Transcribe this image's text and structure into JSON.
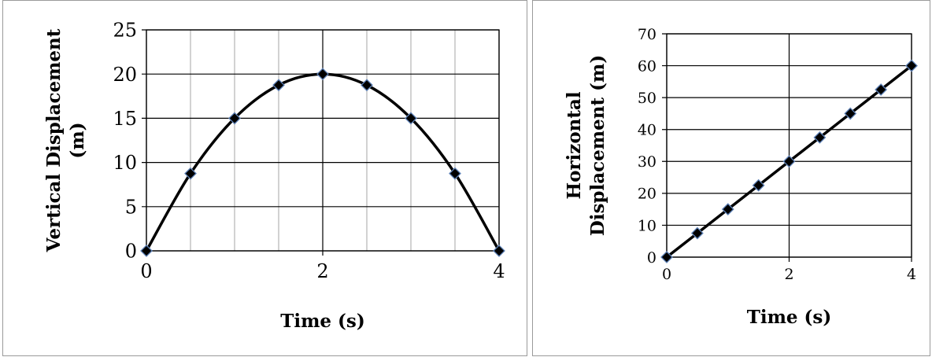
{
  "chart_data": [
    {
      "type": "line",
      "markers": "diamond",
      "xlabel": "Time (s)",
      "ylabel_lines": [
        "Vertical Displacement",
        "(m)"
      ],
      "xlim": [
        0,
        4
      ],
      "ylim": [
        0,
        25
      ],
      "xticks": [
        0,
        2,
        4
      ],
      "yticks": [
        0,
        5,
        10,
        15,
        20,
        25
      ],
      "minor_x_grid_step": 0.5,
      "grid": true,
      "series": [
        {
          "x": [
            0,
            0.5,
            1,
            1.5,
            2,
            2.5,
            3,
            3.5,
            4
          ],
          "y": [
            0,
            8.75,
            15,
            18.75,
            20,
            18.75,
            15,
            8.75,
            0
          ]
        }
      ],
      "colors": {
        "line": "#000000",
        "marker_fill": "#000000",
        "marker_edge": "#5b7fb5",
        "major_grid": "#000000",
        "minor_grid": "#bfbfbf"
      }
    },
    {
      "type": "line",
      "markers": "diamond",
      "xlabel": "Time (s)",
      "ylabel_lines": [
        "Horizontal",
        "Displacement (m)"
      ],
      "xlim": [
        0,
        4
      ],
      "ylim": [
        0,
        70
      ],
      "xticks": [
        0,
        2,
        4
      ],
      "yticks": [
        0,
        10,
        20,
        30,
        40,
        50,
        60,
        70
      ],
      "grid": true,
      "series": [
        {
          "x": [
            0,
            0.5,
            1,
            1.5,
            2,
            2.5,
            3,
            3.5,
            4
          ],
          "y": [
            0,
            7.5,
            15,
            22.5,
            30,
            37.5,
            45,
            52.5,
            60
          ]
        }
      ],
      "colors": {
        "line": "#000000",
        "marker_fill": "#000000",
        "marker_edge": "#5b7fb5",
        "major_grid": "#000000"
      }
    }
  ]
}
